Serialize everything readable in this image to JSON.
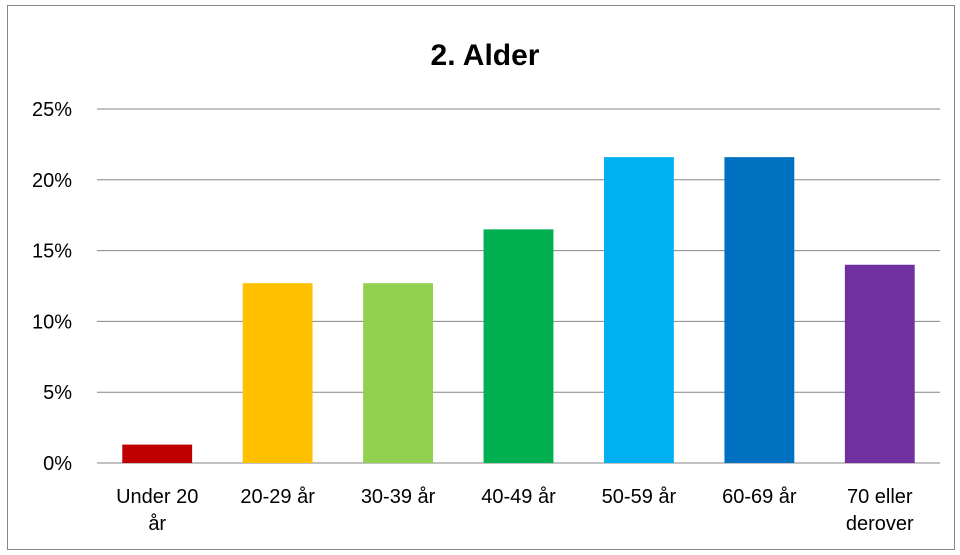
{
  "chart_data": {
    "type": "bar",
    "title": "2. Alder",
    "categories": [
      [
        "Under 20",
        "år"
      ],
      [
        "20-29 år"
      ],
      [
        "30-39 år"
      ],
      [
        "40-49 år"
      ],
      [
        "50-59 år"
      ],
      [
        "60-69 år"
      ],
      [
        "70 eller",
        "derover"
      ]
    ],
    "values": [
      1.3,
      12.7,
      12.7,
      16.5,
      21.6,
      21.6,
      14.0
    ],
    "colors": [
      "#c00000",
      "#ffc000",
      "#92d050",
      "#00b050",
      "#00b0f0",
      "#0070c0",
      "#7030a0"
    ],
    "ylim": [
      0,
      25
    ],
    "yticks": [
      0,
      5,
      10,
      15,
      20,
      25
    ],
    "ytick_format": "{v}%",
    "grid": true,
    "legend": "none"
  }
}
